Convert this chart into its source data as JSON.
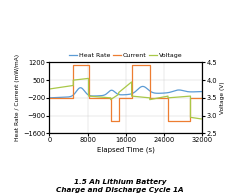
{
  "title_line1": "1.5 Ah Lithium Battery",
  "title_line2": "Charge and Discharge Cycle 1A",
  "xlabel": "Elapsed Time (s)",
  "ylabel_left": "Heat Rate / Current (mW/mA)",
  "ylabel_right": "Voltage (V)",
  "xlim": [
    0,
    32000
  ],
  "ylim_left": [
    -1600,
    1200
  ],
  "ylim_right": [
    2.5,
    4.5
  ],
  "yticks_left": [
    -1600,
    -900,
    -200,
    500,
    1200
  ],
  "yticks_right": [
    2.5,
    3.0,
    3.5,
    4.0,
    4.5
  ],
  "xticks": [
    0,
    8000,
    16000,
    24000,
    32000
  ],
  "legend": [
    "Heat Rate",
    "Current",
    "Voltage"
  ],
  "colors": {
    "heat_rate": "#5B9BD5",
    "current": "#ED7D31",
    "voltage": "#A9C848"
  },
  "background_color": "#FFFFFF",
  "plot_bg": "#FFFFFF",
  "current_x": [
    0,
    5000,
    5000,
    8200,
    8200,
    12800,
    12800,
    14500,
    14500,
    17200,
    17200,
    21000,
    21000,
    24800,
    24800,
    29500,
    29500,
    32000
  ],
  "current_y": [
    -200,
    -200,
    1100,
    1100,
    -200,
    -200,
    -1100,
    -1100,
    -200,
    -200,
    1100,
    1100,
    -200,
    -200,
    -1100,
    -1100,
    -200,
    -200
  ],
  "voltage_segments": [
    [
      0,
      3.75
    ],
    [
      5000,
      3.85
    ],
    [
      5000,
      4.0
    ],
    [
      8200,
      4.05
    ],
    [
      8200,
      3.55
    ],
    [
      12800,
      3.5
    ],
    [
      12800,
      3.45
    ],
    [
      14500,
      3.6
    ],
    [
      14500,
      3.65
    ],
    [
      17200,
      3.95
    ],
    [
      17200,
      3.55
    ],
    [
      21000,
      3.5
    ],
    [
      21000,
      3.45
    ],
    [
      24800,
      3.55
    ],
    [
      24800,
      3.5
    ],
    [
      29500,
      3.55
    ],
    [
      29500,
      2.95
    ],
    [
      32000,
      2.9
    ]
  ]
}
